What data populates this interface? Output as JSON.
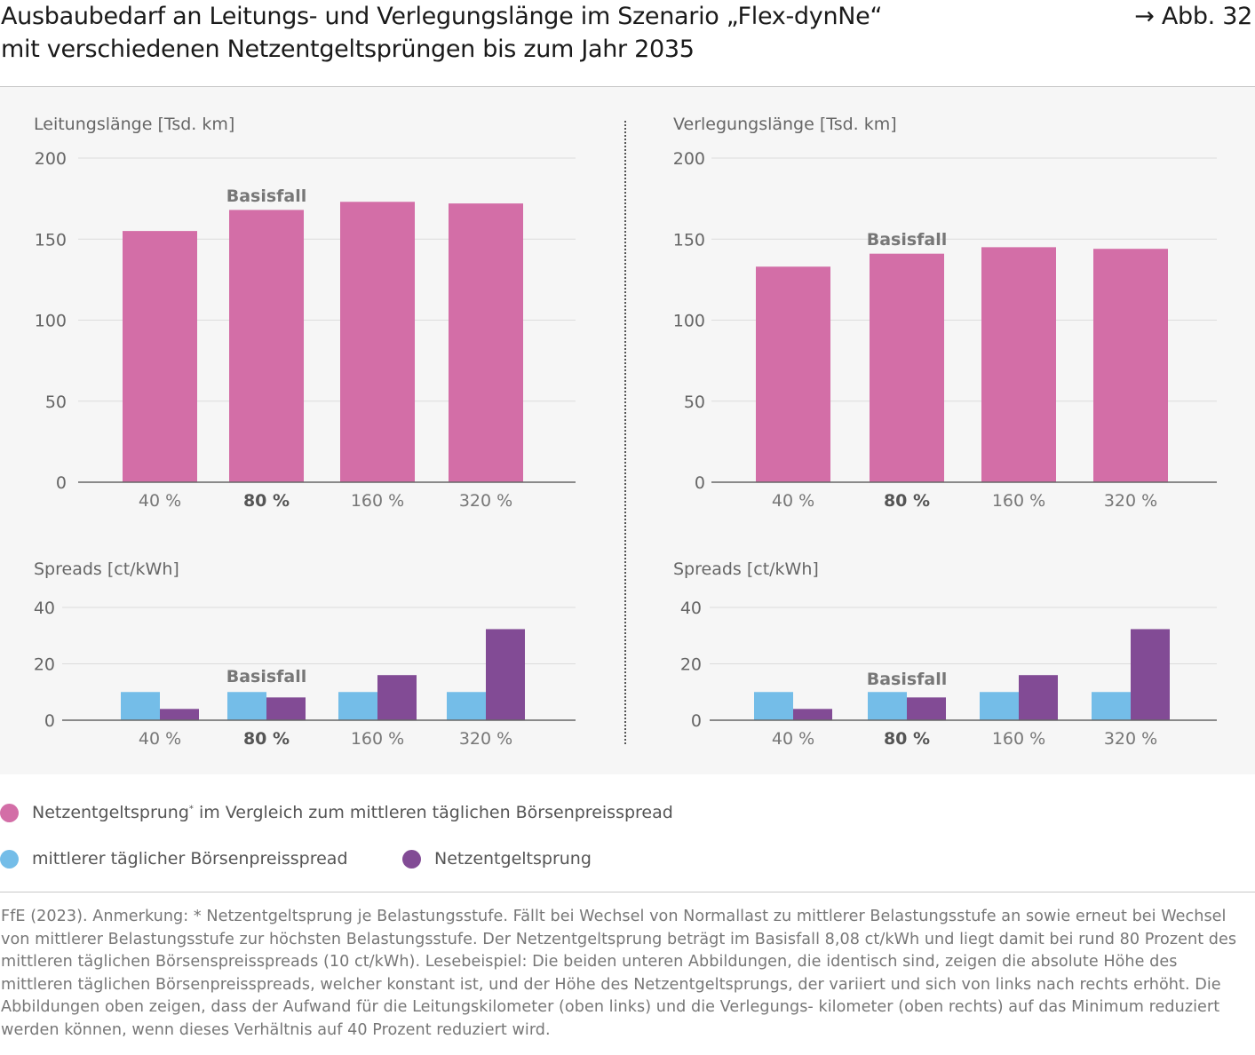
{
  "header": {
    "title_line1": "Ausbaubedarf an Leitungs- und Verlegungslänge im Szenario „Flex-dynNe“",
    "title_line2": "mit verschiedenen Netzentgeltsprüngen bis zum Jahr 2035",
    "figure_ref": "→ Abb. 32"
  },
  "colors": {
    "pink": "#d36ea7",
    "blue": "#74bde8",
    "purple": "#824b95"
  },
  "chart_data": [
    {
      "id": "leitung",
      "type": "bar",
      "title": "Leitungslänge [Tsd. km]",
      "categories": [
        "40 %",
        "80 %",
        "160 %",
        "320 %"
      ],
      "bold_category": "80 %",
      "annotation": "Basisfall",
      "yticks": [
        0,
        50,
        100,
        150,
        200
      ],
      "ylim": [
        0,
        200
      ],
      "values": [
        155,
        168,
        173,
        172
      ]
    },
    {
      "id": "verlegung",
      "type": "bar",
      "title": "Verlegungslänge [Tsd. km]",
      "categories": [
        "40 %",
        "80 %",
        "160 %",
        "320 %"
      ],
      "bold_category": "80 %",
      "annotation": "Basisfall",
      "yticks": [
        0,
        50,
        100,
        150,
        200
      ],
      "ylim": [
        0,
        200
      ],
      "values": [
        133,
        141,
        145,
        144
      ]
    },
    {
      "id": "spreads-left",
      "type": "bar",
      "title": "Spreads [ct/kWh]",
      "categories": [
        "40 %",
        "80 %",
        "160 %",
        "320 %"
      ],
      "bold_category": "80 %",
      "annotation": "Basisfall",
      "yticks": [
        0,
        20,
        40
      ],
      "ylim": [
        0,
        40
      ],
      "series": [
        {
          "name": "mittlerer täglicher Börsenpreisspread",
          "values": [
            10,
            10,
            10,
            10
          ]
        },
        {
          "name": "Netzentgeltsprung",
          "values": [
            4,
            8.08,
            16,
            32.3
          ]
        }
      ]
    },
    {
      "id": "spreads-right",
      "type": "bar",
      "title": "Spreads [ct/kWh]",
      "categories": [
        "40 %",
        "80 %",
        "160 %",
        "320 %"
      ],
      "bold_category": "80 %",
      "annotation": "Basisfall",
      "yticks": [
        0,
        20,
        40
      ],
      "ylim": [
        0,
        40
      ],
      "series": [
        {
          "name": "mittlerer täglicher Börsenpreisspread",
          "values": [
            10,
            10,
            10,
            10
          ]
        },
        {
          "name": "Netzentgeltsprung",
          "values": [
            4,
            8.08,
            16,
            32.3
          ]
        }
      ]
    }
  ],
  "legend": {
    "item1": "Netzentgeltsprung",
    "item1_sup": "*",
    "item1_rest": " im Vergleich zum mittleren täglichen Börsenpreisspread",
    "item2": "mittlerer täglicher Börsenpreisspread",
    "item3": "Netzentgeltsprung"
  },
  "footnote": "FfE (2023). Anmerkung: * Netzentgeltsprung je Belastungsstufe. Fällt bei Wechsel von Normallast zu mittlerer Belastungsstufe an sowie erneut bei Wechsel von mittlerer Belastungsstufe zur höchsten Belastungsstufe. Der Netzentgeltsprung beträgt im Basisfall 8,08 ct/kWh und liegt damit bei rund 80 Prozent des mittleren täglichen Börsenspreisspreads (10 ct/kWh). Lesebeispiel: Die beiden unteren Abbildungen, die identisch sind, zeigen die absolute Höhe des mittleren täglichen Börsenpreisspreads, welcher konstant ist, und der Höhe des Netzentgeltsprungs, der variiert und sich von links nach rechts erhöht. Die Abbildungen oben zeigen, dass der Aufwand für die Leitungskilometer (oben links) und die Verlegungs- kilometer (oben rechts) auf das Minimum reduziert werden können, wenn dieses Verhältnis auf 40 Prozent reduziert wird."
}
